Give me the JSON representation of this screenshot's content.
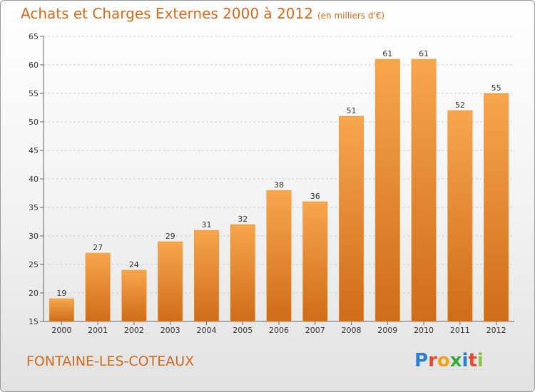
{
  "header": {
    "title": "Achats et Charges Externes 2000 à 2012",
    "unit": "(en milliers d'€)"
  },
  "footer": {
    "place": "FONTAINE-LES-COTEAUX",
    "logo_letters": [
      "P",
      "r",
      "o",
      "x",
      "i",
      "t",
      "i"
    ],
    "logo_colors": [
      "#2a7fd0",
      "#e6492d",
      "#f2a11f",
      "#3aa83a",
      "#2a7fd0",
      "#e6492d",
      "#8bc34a"
    ]
  },
  "colors": {
    "bar_top": "#f7a64e",
    "bar_bottom": "#cf6c17",
    "title": "#d06a1e"
  },
  "chart_data": {
    "type": "bar",
    "title": "Achats et Charges Externes 2000 à 2012",
    "unit": "(en milliers d'€)",
    "categories": [
      "2000",
      "2001",
      "2002",
      "2003",
      "2004",
      "2005",
      "2006",
      "2007",
      "2008",
      "2009",
      "2010",
      "2011",
      "2012"
    ],
    "values": [
      19,
      27,
      24,
      29,
      31,
      32,
      38,
      36,
      51,
      61,
      61,
      52,
      55
    ],
    "ylim": [
      15,
      65
    ],
    "yticks": [
      15,
      20,
      25,
      30,
      35,
      40,
      45,
      50,
      55,
      60,
      65
    ],
    "grid": true,
    "xlabel": "",
    "ylabel": ""
  }
}
